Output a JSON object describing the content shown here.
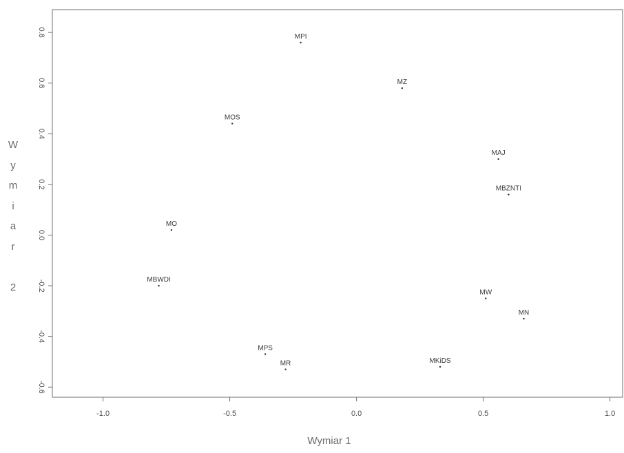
{
  "chart_data": {
    "type": "scatter",
    "title": "",
    "xlabel": "Wymiar 1",
    "ylabel": "Wymiar 2",
    "ylabel_lines": [
      "W",
      "y",
      "m",
      "i",
      "a",
      "r",
      "",
      "2"
    ],
    "xlim": [
      -1.2,
      1.05
    ],
    "ylim": [
      -0.64,
      0.89
    ],
    "x_ticks": [
      -1.0,
      -0.5,
      0.0,
      0.5,
      1.0
    ],
    "x_tick_labels": [
      "-1.0",
      "-0.5",
      "0.0",
      "0.5",
      "1.0"
    ],
    "y_ticks": [
      -0.6,
      -0.4,
      -0.2,
      0.0,
      0.2,
      0.4,
      0.6,
      0.8
    ],
    "y_tick_labels": [
      "-0.6",
      "-0.4",
      "-0.2",
      "0.0",
      "0.2",
      "0.4",
      "0.6",
      "0.8"
    ],
    "grid": false,
    "legend": "none",
    "points": [
      {
        "label": "MPI",
        "x": -0.22,
        "y": 0.76
      },
      {
        "label": "MZ",
        "x": 0.18,
        "y": 0.58
      },
      {
        "label": "MOS",
        "x": -0.49,
        "y": 0.44
      },
      {
        "label": "MAJ",
        "x": 0.56,
        "y": 0.3
      },
      {
        "label": "MBZNTI",
        "x": 0.6,
        "y": 0.16
      },
      {
        "label": "MO",
        "x": -0.73,
        "y": 0.02
      },
      {
        "label": "MBWDI",
        "x": -0.78,
        "y": -0.2
      },
      {
        "label": "MW",
        "x": 0.51,
        "y": -0.25
      },
      {
        "label": "MN",
        "x": 0.66,
        "y": -0.33
      },
      {
        "label": "MPS",
        "x": -0.36,
        "y": -0.47
      },
      {
        "label": "MR",
        "x": -0.28,
        "y": -0.53
      },
      {
        "label": "MKiDS",
        "x": 0.33,
        "y": -0.52
      }
    ]
  },
  "colors": {
    "axis": "#6e6e6e",
    "tick_text": "#4a4a4a",
    "point": "#333333",
    "label": "#3a3a3a",
    "title_text": "#6a6a6a"
  }
}
